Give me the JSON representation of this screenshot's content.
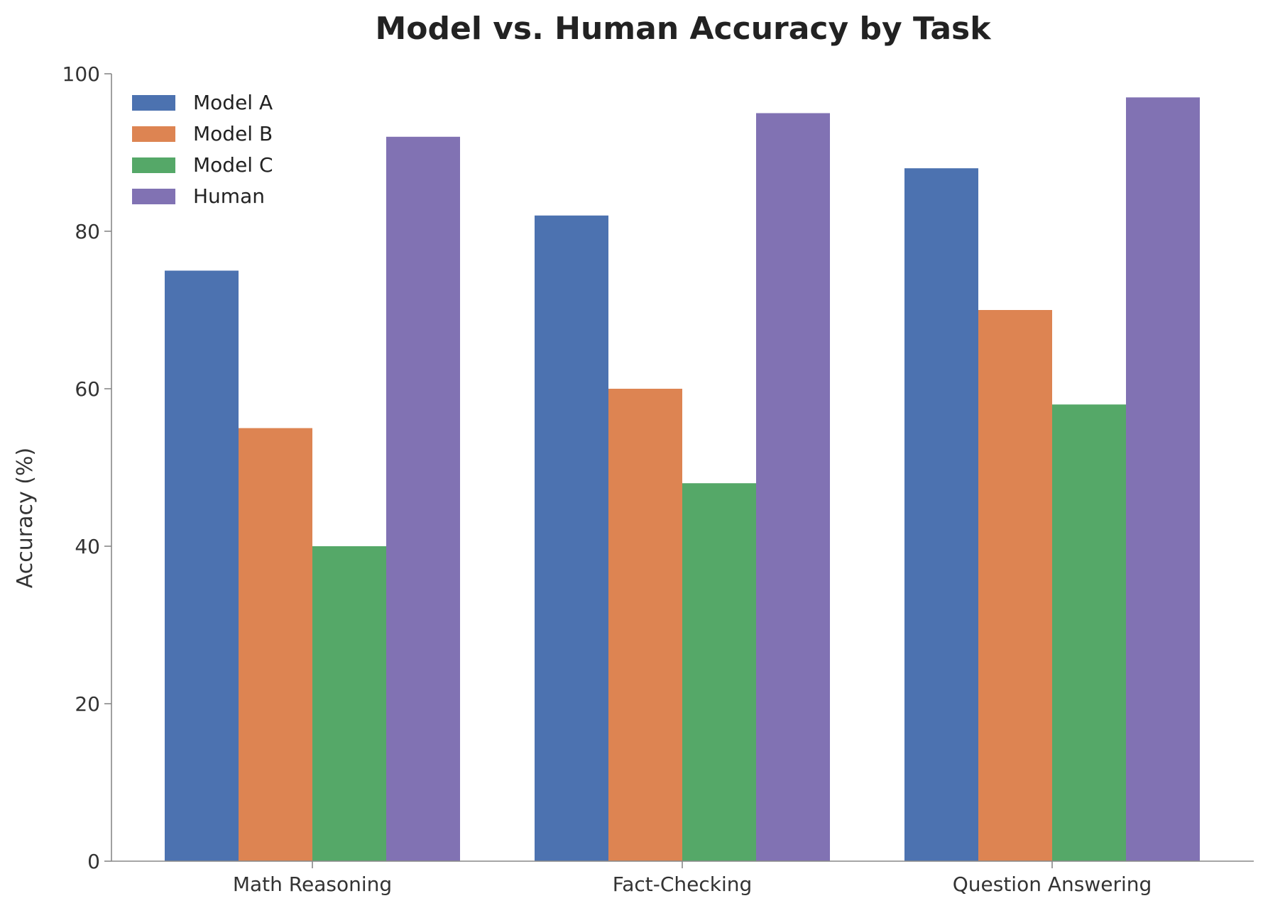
{
  "chart_data": {
    "type": "bar",
    "title": "Model vs. Human Accuracy by Task",
    "xlabel": "",
    "ylabel": "Accuracy (%)",
    "categories": [
      "Math Reasoning",
      "Fact-Checking",
      "Question Answering"
    ],
    "series": [
      {
        "name": "Model A",
        "values": [
          75,
          82,
          88
        ],
        "color": "#4c72b0"
      },
      {
        "name": "Model B",
        "values": [
          55,
          60,
          70
        ],
        "color": "#dd8452"
      },
      {
        "name": "Model C",
        "values": [
          40,
          48,
          58
        ],
        "color": "#55a868"
      },
      {
        "name": "Human",
        "values": [
          92,
          95,
          97
        ],
        "color": "#8172b3"
      }
    ],
    "ylim": [
      0,
      100
    ],
    "yticks": [
      0,
      20,
      40,
      60,
      80,
      100
    ],
    "grid": false,
    "legend_position": "top-left"
  }
}
